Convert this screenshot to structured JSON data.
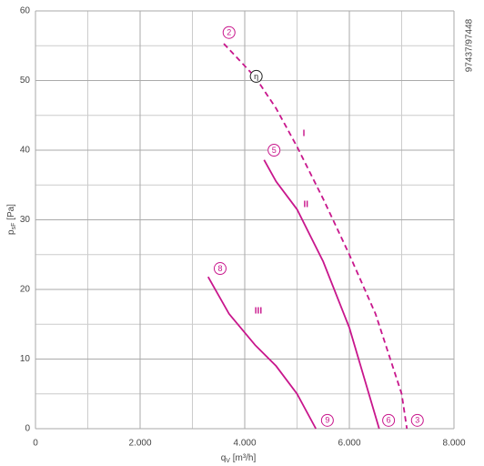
{
  "chart_data": {
    "type": "line",
    "x_label": [
      "q",
      "V",
      " [m³/h]"
    ],
    "y_label": [
      "p",
      "sF",
      " [Pa]"
    ],
    "side_text": "97437/97448",
    "xlim": [
      0,
      8000
    ],
    "xticks": [
      0,
      {
        "value": 2000,
        "label": "2.000"
      },
      {
        "value": 4000,
        "label": "4.000"
      },
      {
        "value": 6000,
        "label": "6.000"
      },
      {
        "value": 8000,
        "label": "8.000"
      }
    ],
    "minor_xticks": [
      1000,
      3000,
      5000,
      7000
    ],
    "ylim": [
      0,
      60
    ],
    "yticks": [
      0,
      10,
      20,
      30,
      40,
      50,
      60
    ],
    "minor_yticks": [
      5,
      15,
      25,
      35,
      45,
      55
    ],
    "grid": true,
    "series": [
      {
        "name": "I",
        "color": "#c8168c",
        "dashed": true,
        "label_at": [
          5130,
          42.4
        ],
        "x": [
          3600,
          4200,
          4600,
          5000,
          5500,
          6000,
          6500,
          7000,
          7100
        ],
        "values": [
          55.3,
          50.5,
          46,
          40.5,
          33,
          25,
          16.5,
          5,
          0
        ]
      },
      {
        "name": "II",
        "color": "#c8168c",
        "dashed": false,
        "label_at": [
          5170,
          32.2
        ],
        "x": [
          4370,
          4600,
          5000,
          5500,
          6000,
          6570
        ],
        "values": [
          38.6,
          35.5,
          31.5,
          24,
          14.5,
          0
        ]
      },
      {
        "name": "III",
        "color": "#c8168c",
        "dashed": false,
        "label_at": [
          4260,
          16.9
        ],
        "x": [
          3300,
          3700,
          4200,
          4600,
          5000,
          5360
        ],
        "values": [
          21.8,
          16.5,
          12,
          9,
          5,
          0
        ]
      }
    ],
    "markers": [
      {
        "text": "2",
        "x": 3700,
        "y": 56.9,
        "color": "#c8168c"
      },
      {
        "text": "5",
        "x": 4560,
        "y": 40,
        "color": "#c8168c"
      },
      {
        "text": "8",
        "x": 3530,
        "y": 23,
        "color": "#c8168c"
      },
      {
        "text": "9",
        "x": 5580,
        "y": 1.2,
        "color": "#c8168c"
      },
      {
        "text": "6",
        "x": 6750,
        "y": 1.2,
        "color": "#c8168c"
      },
      {
        "text": "3",
        "x": 7300,
        "y": 1.2,
        "color": "#c8168c"
      },
      {
        "text": "η",
        "x": 4220,
        "y": 50.6,
        "color": "#222222"
      }
    ]
  }
}
